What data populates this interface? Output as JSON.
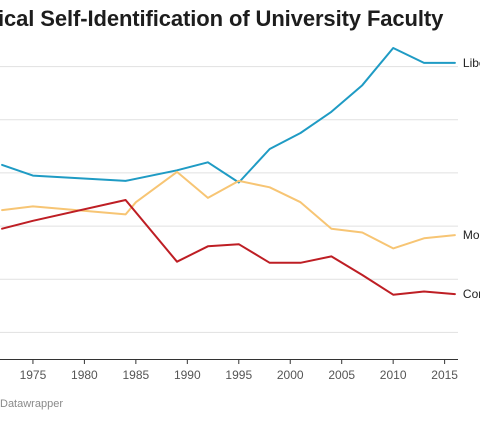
{
  "title": "ical Self-Identification of University Faculty",
  "credit": "Datawrapper",
  "chart_data": {
    "type": "line",
    "title": "ical Self-Identification of University Faculty",
    "xlabel": "",
    "ylabel": "",
    "x_ticks": [
      1975,
      1980,
      1985,
      1990,
      1995,
      2000,
      2005,
      2010,
      2015
    ],
    "xlim": [
      1971.8,
      2016.3
    ],
    "ylim": [
      5,
      65
    ],
    "y_gridlines": [
      10,
      20,
      30,
      40,
      50,
      60
    ],
    "grid": true,
    "legend": "inline labels at line ends",
    "series": [
      {
        "name": "Libe",
        "color": "#1f9bc4",
        "x": [
          1972,
          1975,
          1984,
          1989,
          1992,
          1995,
          1998,
          2001,
          2004,
          2007,
          2010,
          2013,
          2016
        ],
        "y": [
          41.5,
          39.5,
          38.5,
          40.5,
          42,
          38.2,
          44.5,
          47.5,
          51.5,
          56.5,
          63.5,
          60.7,
          60.7
        ]
      },
      {
        "name": "Mo",
        "color": "#f7c574",
        "x": [
          1972,
          1975,
          1984,
          1985,
          1989,
          1992,
          1995,
          1998,
          2001,
          2004,
          2007,
          2010,
          2013,
          2016
        ],
        "y": [
          33,
          33.7,
          32.2,
          34.5,
          40.2,
          35.3,
          38.5,
          37.3,
          34.5,
          29.5,
          28.8,
          25.8,
          27.7,
          28.3
        ]
      },
      {
        "name": "Cor",
        "color": "#be1e24",
        "x": [
          1972,
          1975,
          1984,
          1989,
          1992,
          1995,
          1998,
          2001,
          2004,
          2007,
          2010,
          2013,
          2016
        ],
        "y": [
          29.5,
          31,
          34.9,
          23.3,
          26.2,
          26.6,
          23.1,
          23.1,
          24.3,
          20.8,
          17.1,
          17.7,
          17.2
        ]
      }
    ]
  }
}
